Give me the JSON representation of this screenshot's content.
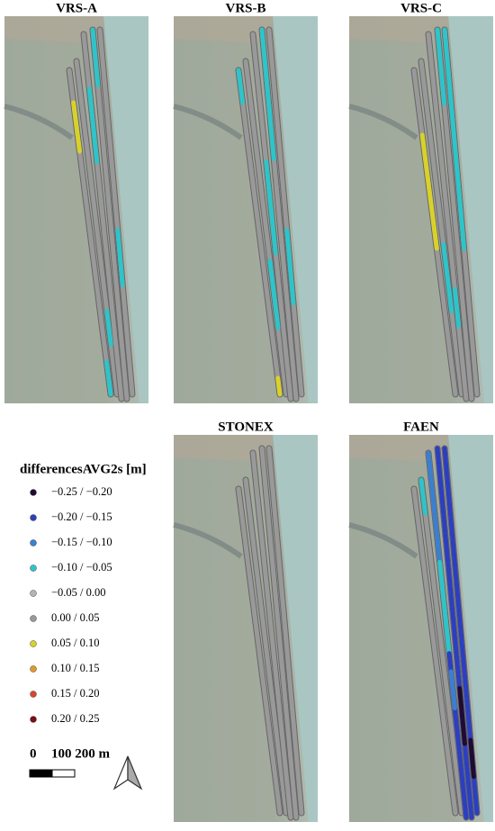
{
  "panels": [
    {
      "title": "VRS-A"
    },
    {
      "title": "VRS-B"
    },
    {
      "title": "VRS-C"
    },
    {
      "title": "STONEX"
    },
    {
      "title": "FAEN"
    }
  ],
  "legend": {
    "title": "differencesAVG2s [m]",
    "items": [
      {
        "label": "−0.25 / −0.20",
        "color": "#1f0b33"
      },
      {
        "label": "−0.20 / −0.15",
        "color": "#2c3fbf"
      },
      {
        "label": "−0.15 / −0.10",
        "color": "#3a7fd0"
      },
      {
        "label": "−0.10 / −0.05",
        "color": "#2ec4c9"
      },
      {
        "label": "−0.05 / 0.00",
        "color": "#b4b4b4"
      },
      {
        "label": "0.00 / 0.05",
        "color": "#999999"
      },
      {
        "label": "0.05 / 0.10",
        "color": "#d9d12a"
      },
      {
        "label": "0.10 / 0.15",
        "color": "#df9a2a"
      },
      {
        "label": "0.15 / 0.20",
        "color": "#d9442a"
      },
      {
        "label": "0.20 / 0.25",
        "color": "#7a0d14"
      }
    ]
  },
  "scale_bar": {
    "labels": [
      "0",
      "100 200 m"
    ]
  }
}
